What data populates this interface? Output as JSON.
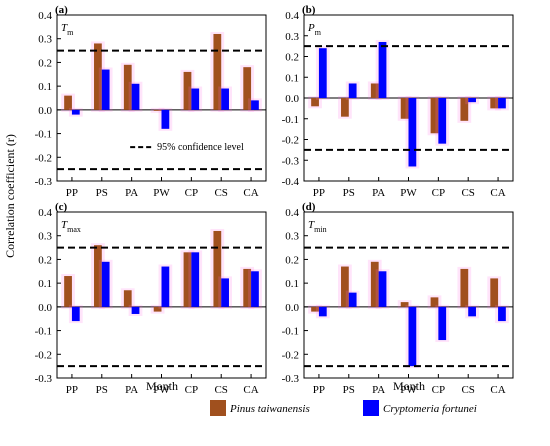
{
  "colors": {
    "pinus": "#A0501E",
    "cryptomeria": "#0000FF",
    "highlight": "#FF6BE5",
    "axis": "#000000"
  },
  "legend": {
    "series": [
      {
        "name": "Pinus taiwanensis",
        "color": "#A0501E"
      },
      {
        "name": "Cryptomeria fortunei",
        "color": "#0000FF"
      }
    ],
    "placement": "bottom-center"
  },
  "axis_titles": {
    "y": "Correlation coefficient (r)",
    "x": "Month"
  },
  "chart_data": [
    {
      "type": "bar",
      "panel": "(a)",
      "var": "T",
      "var_sub": "m",
      "categories": [
        "PP",
        "PS",
        "PA",
        "PW",
        "CP",
        "CS",
        "CA"
      ],
      "series": [
        {
          "name": "Pinus taiwanensis",
          "values": [
            0.06,
            0.28,
            0.19,
            0.0,
            0.16,
            0.32,
            0.18
          ]
        },
        {
          "name": "Cryptomeria fortunei",
          "values": [
            -0.02,
            0.17,
            0.11,
            -0.08,
            0.09,
            0.09,
            0.04
          ]
        }
      ],
      "ylim": [
        -0.3,
        0.4
      ],
      "yticks": [
        "-0.3",
        "-0.2",
        "-0.1",
        "0.0",
        "0.1",
        "0.2",
        "0.3",
        "0.4"
      ],
      "threshold": [
        0.25,
        -0.25
      ],
      "annotation": "95% confidence level"
    },
    {
      "type": "bar",
      "panel": "(b)",
      "var": "P",
      "var_sub": "m",
      "categories": [
        "PP",
        "PS",
        "PA",
        "PW",
        "CP",
        "CS",
        "CA"
      ],
      "series": [
        {
          "name": "Pinus taiwanensis",
          "values": [
            -0.04,
            -0.09,
            0.07,
            -0.1,
            -0.17,
            -0.11,
            -0.05
          ]
        },
        {
          "name": "Cryptomeria fortunei",
          "values": [
            0.24,
            0.07,
            0.27,
            -0.33,
            -0.22,
            -0.02,
            -0.05
          ]
        }
      ],
      "ylim": [
        -0.4,
        0.4
      ],
      "yticks": [
        "-0.4",
        "-0.3",
        "-0.2",
        "-0.1",
        "0.0",
        "0.1",
        "0.2",
        "0.3",
        "0.4"
      ],
      "threshold": [
        0.25,
        -0.25
      ]
    },
    {
      "type": "bar",
      "panel": "(c)",
      "var": "T",
      "var_sub": "max",
      "categories": [
        "PP",
        "PS",
        "PA",
        "PW",
        "CP",
        "CS",
        "CA"
      ],
      "series": [
        {
          "name": "Pinus taiwanensis",
          "values": [
            0.13,
            0.26,
            0.07,
            -0.02,
            0.23,
            0.32,
            0.16
          ]
        },
        {
          "name": "Cryptomeria fortunei",
          "values": [
            -0.06,
            0.19,
            -0.03,
            0.17,
            0.23,
            0.12,
            0.15
          ]
        }
      ],
      "ylim": [
        -0.3,
        0.4
      ],
      "yticks": [
        "-0.3",
        "-0.2",
        "-0.1",
        "0.0",
        "0.1",
        "0.2",
        "0.3",
        "0.4"
      ],
      "threshold": [
        0.25,
        -0.25
      ]
    },
    {
      "type": "bar",
      "panel": "(d)",
      "var": "T",
      "var_sub": "min",
      "categories": [
        "PP",
        "PS",
        "PA",
        "PW",
        "CP",
        "CS",
        "CA"
      ],
      "series": [
        {
          "name": "Pinus taiwanensis",
          "values": [
            -0.02,
            0.17,
            0.19,
            0.02,
            0.04,
            0.16,
            0.12
          ]
        },
        {
          "name": "Cryptomeria fortunei",
          "values": [
            -0.04,
            0.06,
            0.15,
            -0.25,
            -0.14,
            -0.04,
            -0.06
          ]
        }
      ],
      "ylim": [
        -0.3,
        0.4
      ],
      "yticks": [
        "-0.3",
        "-0.2",
        "-0.1",
        "0.0",
        "0.1",
        "0.2",
        "0.3",
        "0.4"
      ],
      "threshold": [
        0.25,
        -0.25
      ]
    }
  ]
}
